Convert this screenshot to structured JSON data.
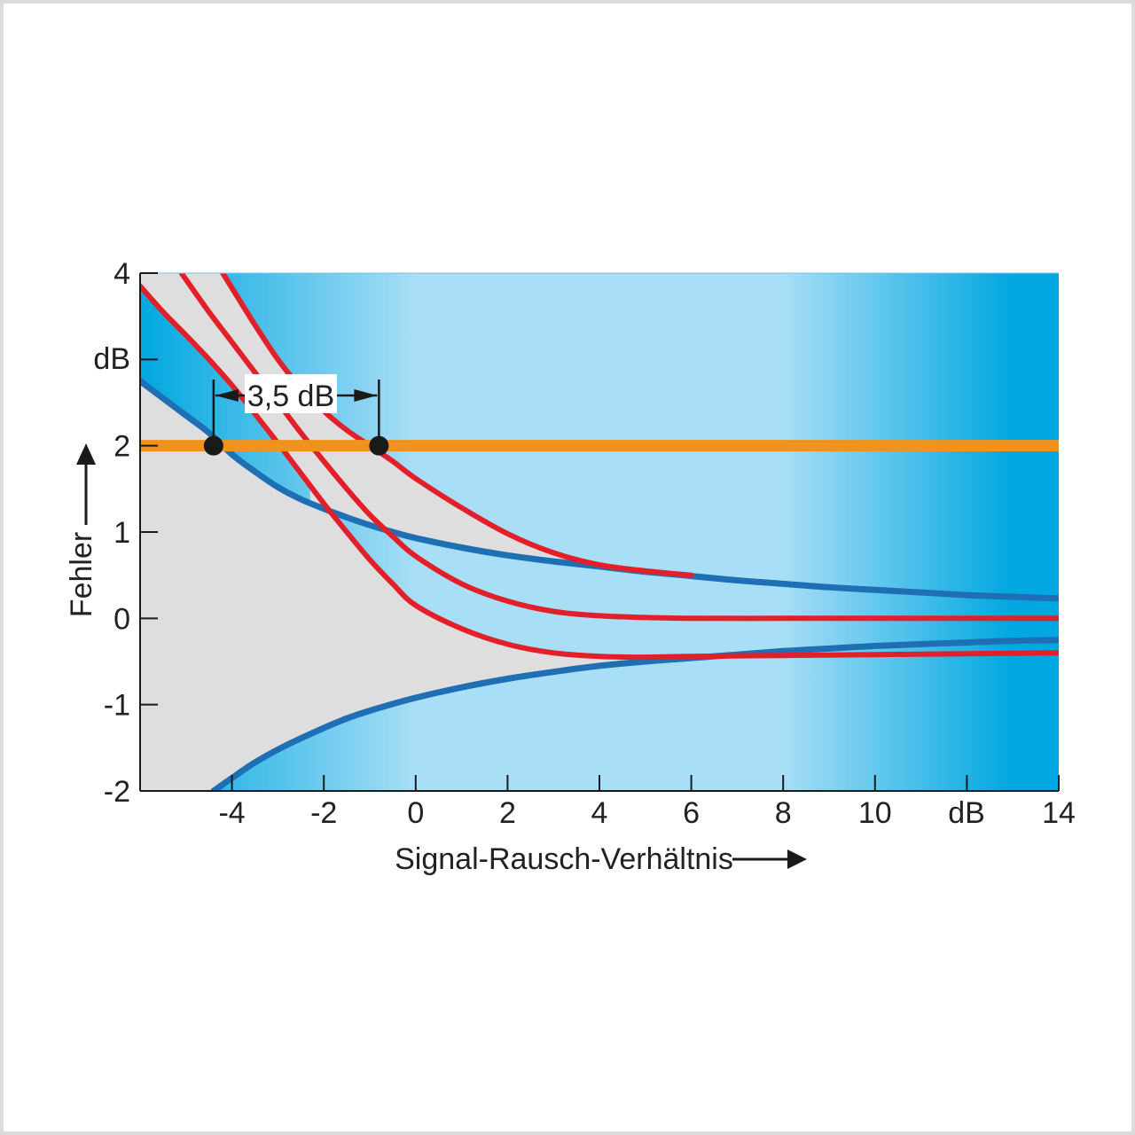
{
  "chart_data": {
    "type": "line",
    "xlabel": "Signal-Rausch-Verhältnis",
    "ylabel": "Fehler",
    "x_unit": "dB",
    "y_unit": "dB",
    "xlim": [
      -6,
      14
    ],
    "ylim": [
      -2,
      4
    ],
    "x_ticks": [
      -4,
      -2,
      0,
      2,
      4,
      6,
      8,
      10,
      14
    ],
    "x_tick_labels": [
      "-4",
      "-2",
      "0",
      "2",
      "4",
      "6",
      "8",
      "10",
      "14"
    ],
    "y_ticks": [
      4,
      2,
      1,
      0,
      -1,
      -2
    ],
    "y_tick_labels": [
      "4",
      "2",
      "1",
      "0",
      "-1",
      "-2"
    ],
    "grid": false,
    "colors": {
      "blue_curve": "#1f6fb5",
      "red_curve": "#e3202a",
      "threshold": "#f0921e",
      "marker": "#1a1a1a",
      "bg_light": "#a8def6",
      "bg_dark": "#00a7e0",
      "envelope": "#dedede"
    },
    "threshold": {
      "y": 2
    },
    "annotation": {
      "label": "3,5 dB",
      "x1": -4.4,
      "x2": -0.8,
      "y": 2
    },
    "series": [
      {
        "color": "blue",
        "x": [
          -6,
          -5,
          -4.5,
          -4,
          -3.5,
          -3,
          -2.5,
          -2,
          -1.5,
          -1,
          -0.5,
          0,
          1,
          2,
          3,
          4,
          5,
          6,
          7,
          8,
          9,
          10,
          11,
          12,
          13,
          14
        ],
        "y": [
          2.75,
          2.35,
          2.15,
          1.9,
          1.7,
          1.52,
          1.38,
          1.27,
          1.17,
          1.08,
          1.0,
          0.93,
          0.82,
          0.73,
          0.66,
          0.6,
          0.54,
          0.49,
          0.44,
          0.4,
          0.36,
          0.33,
          0.3,
          0.27,
          0.25,
          0.23
        ]
      },
      {
        "color": "blue",
        "x": [
          -4.4,
          -4,
          -3.5,
          -3,
          -2.5,
          -2,
          -1.5,
          -1,
          0,
          1,
          2,
          3,
          4,
          5,
          6,
          7,
          8,
          9,
          10,
          11,
          12,
          13,
          14
        ],
        "y": [
          -2.0,
          -1.85,
          -1.67,
          -1.52,
          -1.39,
          -1.27,
          -1.16,
          -1.07,
          -0.92,
          -0.8,
          -0.7,
          -0.62,
          -0.55,
          -0.5,
          -0.46,
          -0.42,
          -0.38,
          -0.35,
          -0.32,
          -0.3,
          -0.28,
          -0.26,
          -0.25
        ]
      },
      {
        "color": "red",
        "x": [
          -6,
          -5.5,
          -5,
          -4.5,
          -4,
          -3.5,
          -3,
          -2.5,
          -2,
          -1.5,
          -1,
          -0.5,
          0,
          1,
          2,
          3,
          4,
          5,
          6,
          8,
          10,
          12,
          14
        ],
        "y": [
          3.85,
          3.55,
          3.28,
          3.0,
          2.7,
          2.37,
          2.03,
          1.68,
          1.33,
          1.0,
          0.68,
          0.4,
          0.15,
          -0.12,
          -0.3,
          -0.4,
          -0.44,
          -0.45,
          -0.44,
          -0.43,
          -0.42,
          -0.41,
          -0.4
        ]
      },
      {
        "color": "red",
        "x": [
          -5.1,
          -4.5,
          -4,
          -3.5,
          -3,
          -2.5,
          -2,
          -1.5,
          -1,
          -0.5,
          0,
          1,
          2,
          3,
          4,
          5,
          6,
          8,
          10,
          12,
          14
        ],
        "y": [
          4.0,
          3.55,
          3.2,
          2.85,
          2.5,
          2.15,
          1.82,
          1.5,
          1.2,
          0.95,
          0.72,
          0.4,
          0.2,
          0.08,
          0.03,
          0.01,
          0.0,
          0.0,
          0.0,
          0.0,
          0.0
        ]
      },
      {
        "color": "red",
        "x": [
          -4.2,
          -3.5,
          -3,
          -2.5,
          -2,
          -1.5,
          -1,
          -0.5,
          0,
          1,
          2,
          3,
          4,
          5,
          6
        ],
        "y": [
          4.0,
          3.4,
          3.0,
          2.67,
          2.4,
          2.18,
          2.0,
          1.82,
          1.62,
          1.28,
          0.98,
          0.76,
          0.62,
          0.55,
          0.5
        ]
      }
    ]
  }
}
